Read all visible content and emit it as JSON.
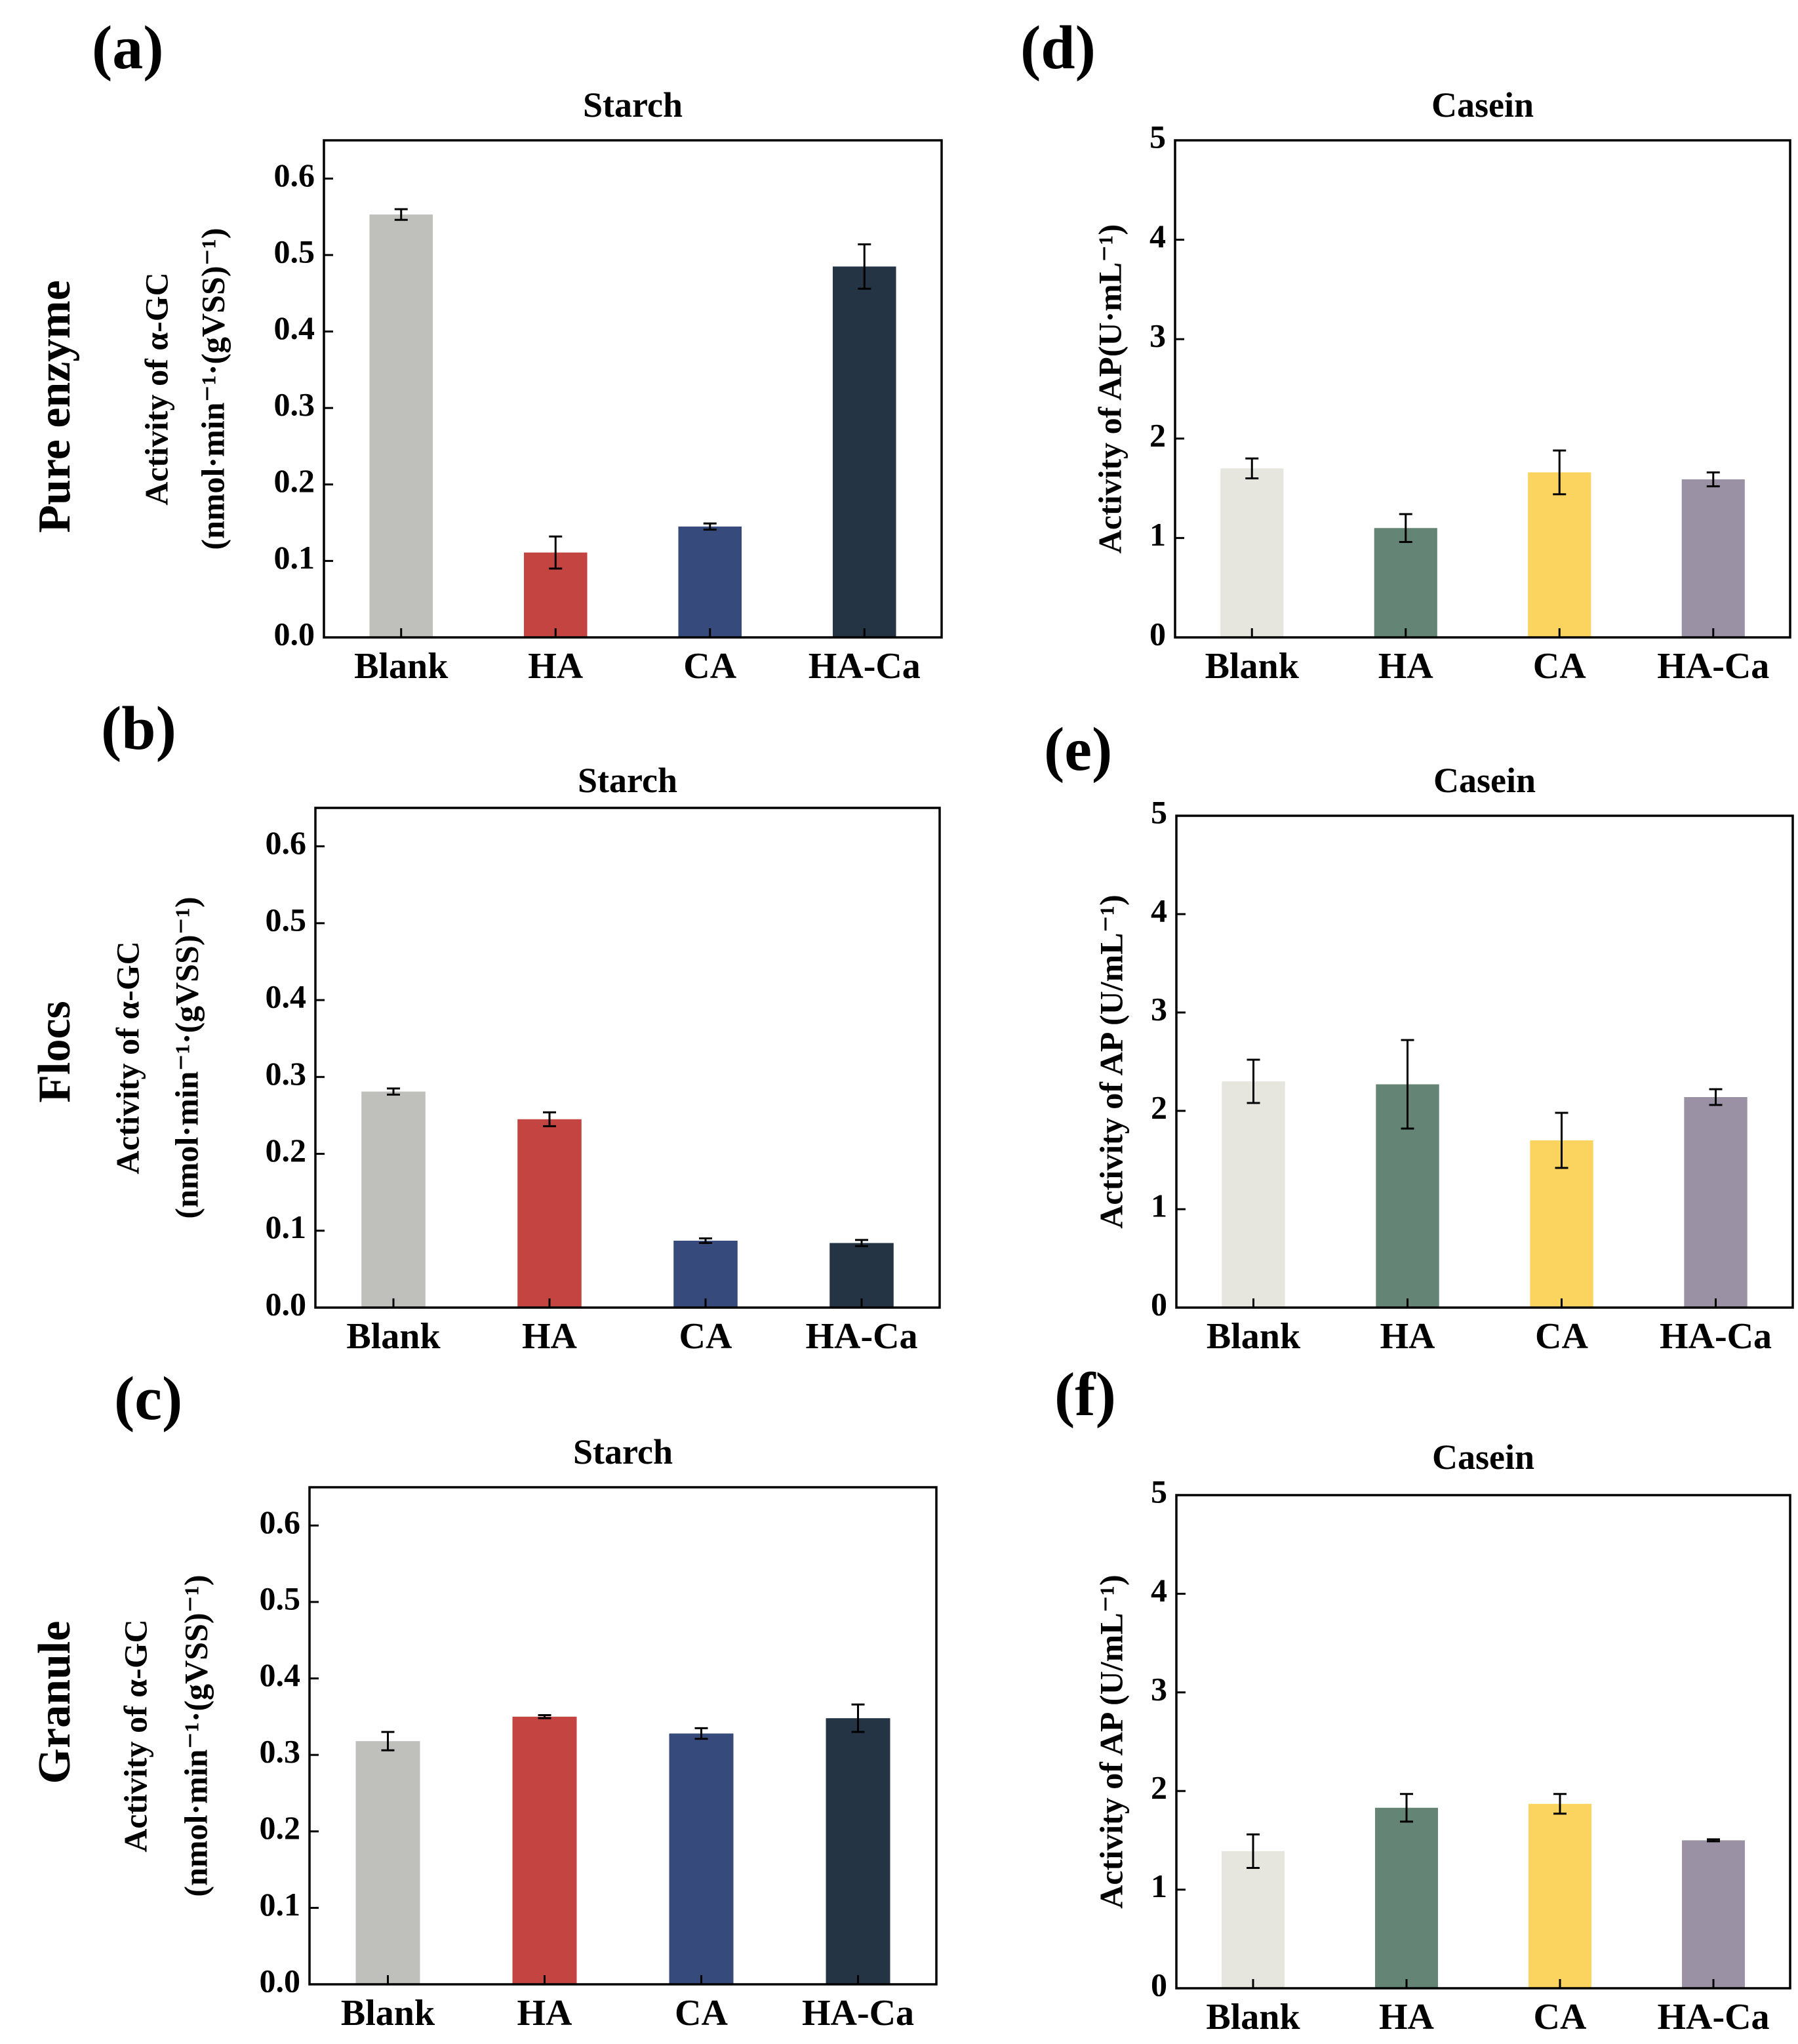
{
  "row_labels": [
    "Pure enzyme",
    "Flocs",
    "Granule"
  ],
  "colors": {
    "starch": [
      "#bfbfbb",
      "#c44442",
      "#374a7c",
      "#243444"
    ],
    "casein": [
      "#e6e6de",
      "#648476",
      "#fad45e",
      "#9b91a4"
    ]
  },
  "chart_data": [
    {
      "panel": "(a)",
      "type": "bar",
      "title": "Starch",
      "categories": [
        "Blank",
        "HA",
        "CA",
        "HA-Ca"
      ],
      "values": [
        0.553,
        0.111,
        0.145,
        0.485
      ],
      "errors": [
        0.007,
        0.021,
        0.004,
        0.029
      ],
      "ylabel": [
        "Activity of α-GC",
        "(nmol·min⁻¹·(gVSS)⁻¹)"
      ],
      "ylim": [
        0,
        0.65
      ],
      "yticks": [
        "0.0",
        "0.1",
        "0.2",
        "0.3",
        "0.4",
        "0.5",
        "0.6"
      ]
    },
    {
      "panel": "(b)",
      "type": "bar",
      "title": "Starch",
      "categories": [
        "Blank",
        "HA",
        "CA",
        "HA-Ca"
      ],
      "values": [
        0.281,
        0.245,
        0.087,
        0.084
      ],
      "errors": [
        0.004,
        0.009,
        0.003,
        0.004
      ],
      "ylabel": [
        "Activity of α-GC",
        "(nmol·min⁻¹·(gVSS)⁻¹)"
      ],
      "ylim": [
        0,
        0.65
      ],
      "yticks": [
        "0.0",
        "0.1",
        "0.2",
        "0.3",
        "0.4",
        "0.5",
        "0.6"
      ]
    },
    {
      "panel": "(c)",
      "type": "bar",
      "title": "Starch",
      "categories": [
        "Blank",
        "HA",
        "CA",
        "HA-Ca"
      ],
      "values": [
        0.318,
        0.35,
        0.328,
        0.348
      ],
      "errors": [
        0.012,
        0.002,
        0.007,
        0.018
      ],
      "ylabel": [
        "Activity of α-GC",
        "(nmol·min⁻¹·(gVSS)⁻¹)"
      ],
      "ylim": [
        0,
        0.65
      ],
      "yticks": [
        "0.0",
        "0.1",
        "0.2",
        "0.3",
        "0.4",
        "0.5",
        "0.6"
      ]
    },
    {
      "panel": "(d)",
      "type": "bar",
      "title": "Casein",
      "categories": [
        "Blank",
        "HA",
        "CA",
        "HA-Ca"
      ],
      "values": [
        1.7,
        1.1,
        1.66,
        1.59
      ],
      "errors": [
        0.1,
        0.14,
        0.22,
        0.07
      ],
      "ylabel": [
        "Activity of AP(U·mL⁻¹)"
      ],
      "ylim": [
        0,
        5
      ],
      "yticks": [
        "0",
        "1",
        "2",
        "3",
        "4",
        "5"
      ]
    },
    {
      "panel": "(e)",
      "type": "bar",
      "title": "Casein",
      "categories": [
        "Blank",
        "HA",
        "CA",
        "HA-Ca"
      ],
      "values": [
        2.3,
        2.27,
        1.7,
        2.14
      ],
      "errors": [
        0.22,
        0.45,
        0.28,
        0.08
      ],
      "ylabel": [
        "Activity of AP (U/mL⁻¹)"
      ],
      "ylim": [
        0,
        5
      ],
      "yticks": [
        "0",
        "1",
        "2",
        "3",
        "4",
        "5"
      ]
    },
    {
      "panel": "(f)",
      "type": "bar",
      "title": "Casein",
      "categories": [
        "Blank",
        "HA",
        "CA",
        "HA-Ca"
      ],
      "values": [
        1.39,
        1.83,
        1.87,
        1.5
      ],
      "errors": [
        0.17,
        0.14,
        0.1,
        0.01
      ],
      "ylabel": [
        "Activity of AP (U/mL⁻¹)"
      ],
      "ylim": [
        0,
        5
      ],
      "yticks": [
        "0",
        "1",
        "2",
        "3",
        "4",
        "5"
      ]
    }
  ]
}
